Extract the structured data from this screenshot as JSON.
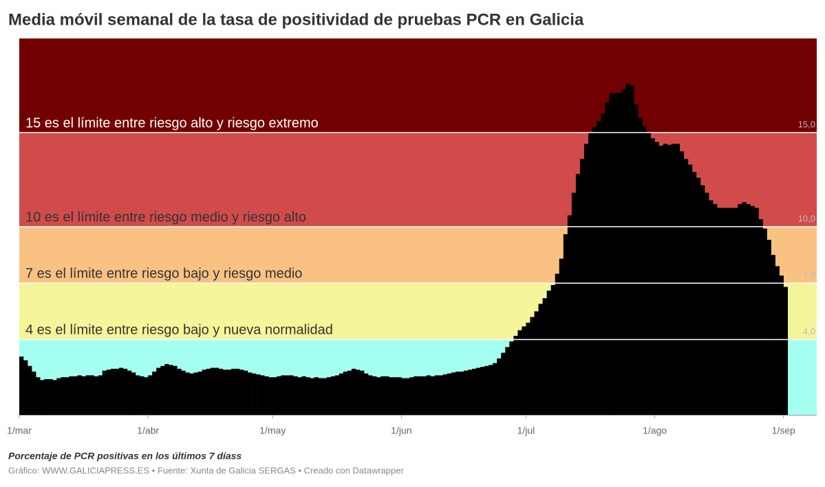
{
  "chart_data": {
    "type": "bar",
    "title": "Media móvil semanal de la tasa de positividad de pruebas PCR en Galicia",
    "subtitle": "Porcentaje de PCR positivas en los últimos 7 díass",
    "source": "Gráfico: WWW.GALICIAPRESS.ES • Fuente: Xunta de Galicia SERGAS • Creado con Datawrapper",
    "color": "#000000",
    "bands": [
      {
        "from": 15,
        "to": 20,
        "color": "#720000",
        "label": "15 es el límite entre riesgo alto y riesgo extremo"
      },
      {
        "from": 10,
        "to": 15,
        "color": "#d24b4b",
        "label": "10 es el límite entre riesgo medio y riesgo alto"
      },
      {
        "from": 7,
        "to": 10,
        "color": "#f9c283",
        "label": "7 es el límite entre riesgo bajo y riesgo medio"
      },
      {
        "from": 4,
        "to": 7,
        "color": "#f5f59a",
        "label": "4 es el límite entre riesgo bajo y nueva normalidad"
      },
      {
        "from": 0,
        "to": 4,
        "color": "#a5fff0"
      }
    ],
    "ylim": [
      0,
      20
    ],
    "yticks": [
      {
        "value": 4,
        "label": "4,0"
      },
      {
        "value": 7,
        "label": "7,0"
      },
      {
        "value": 10,
        "label": "10,0"
      },
      {
        "value": 15,
        "label": "15,0"
      }
    ],
    "xlim": [
      0,
      192
    ],
    "xticks": [
      {
        "value": 0,
        "label": "1/mar"
      },
      {
        "value": 31,
        "label": "1/abr"
      },
      {
        "value": 61,
        "label": "1/may"
      },
      {
        "value": 92,
        "label": "1/jun"
      },
      {
        "value": 122,
        "label": "1/jul"
      },
      {
        "value": 153,
        "label": "1/ago"
      },
      {
        "value": 184,
        "label": "1/sep"
      }
    ],
    "values": [
      3.1,
      2.9,
      2.6,
      2.3,
      2.0,
      1.85,
      1.9,
      1.9,
      1.85,
      1.95,
      2.0,
      2.0,
      2.05,
      2.05,
      2.1,
      2.05,
      2.1,
      2.1,
      2.05,
      2.1,
      2.35,
      2.4,
      2.45,
      2.45,
      2.5,
      2.45,
      2.35,
      2.25,
      2.1,
      2.05,
      2.0,
      2.1,
      2.3,
      2.5,
      2.6,
      2.7,
      2.65,
      2.6,
      2.45,
      2.35,
      2.25,
      2.2,
      2.25,
      2.3,
      2.4,
      2.45,
      2.5,
      2.5,
      2.45,
      2.4,
      2.4,
      2.45,
      2.45,
      2.4,
      2.35,
      2.25,
      2.2,
      2.15,
      2.1,
      2.05,
      2.0,
      2.0,
      2.05,
      2.1,
      2.1,
      2.1,
      2.05,
      2.0,
      2.05,
      2.0,
      1.95,
      2.0,
      1.95,
      1.95,
      2.0,
      2.05,
      2.1,
      2.2,
      2.3,
      2.35,
      2.45,
      2.4,
      2.35,
      2.2,
      2.1,
      2.05,
      2.0,
      2.05,
      2.05,
      2.0,
      2.0,
      2.0,
      1.95,
      1.95,
      2.0,
      2.05,
      2.05,
      2.05,
      2.1,
      2.05,
      2.1,
      2.1,
      2.15,
      2.2,
      2.25,
      2.3,
      2.3,
      2.35,
      2.4,
      2.45,
      2.5,
      2.55,
      2.6,
      2.65,
      2.75,
      3.0,
      3.3,
      3.6,
      3.9,
      4.2,
      4.5,
      4.7,
      4.9,
      5.2,
      5.5,
      5.9,
      6.2,
      6.6,
      6.9,
      7.5,
      8.3,
      9.6,
      10.6,
      11.8,
      12.8,
      13.6,
      14.4,
      15.0,
      15.3,
      15.6,
      16.0,
      16.6,
      17.1,
      17.1,
      17.1,
      17.3,
      17.6,
      17.5,
      16.5,
      15.8,
      15.35,
      15.0,
      14.7,
      14.5,
      14.3,
      14.4,
      14.35,
      14.4,
      14.4,
      14.0,
      13.6,
      13.3,
      12.9,
      12.6,
      12.2,
      11.8,
      11.4,
      11.2,
      11.0,
      11.0,
      11.0,
      11.0,
      11.0,
      11.2,
      11.3,
      11.2,
      11.1,
      11.0,
      10.4,
      9.9,
      9.3,
      8.5,
      7.9,
      7.4,
      6.8
    ]
  }
}
